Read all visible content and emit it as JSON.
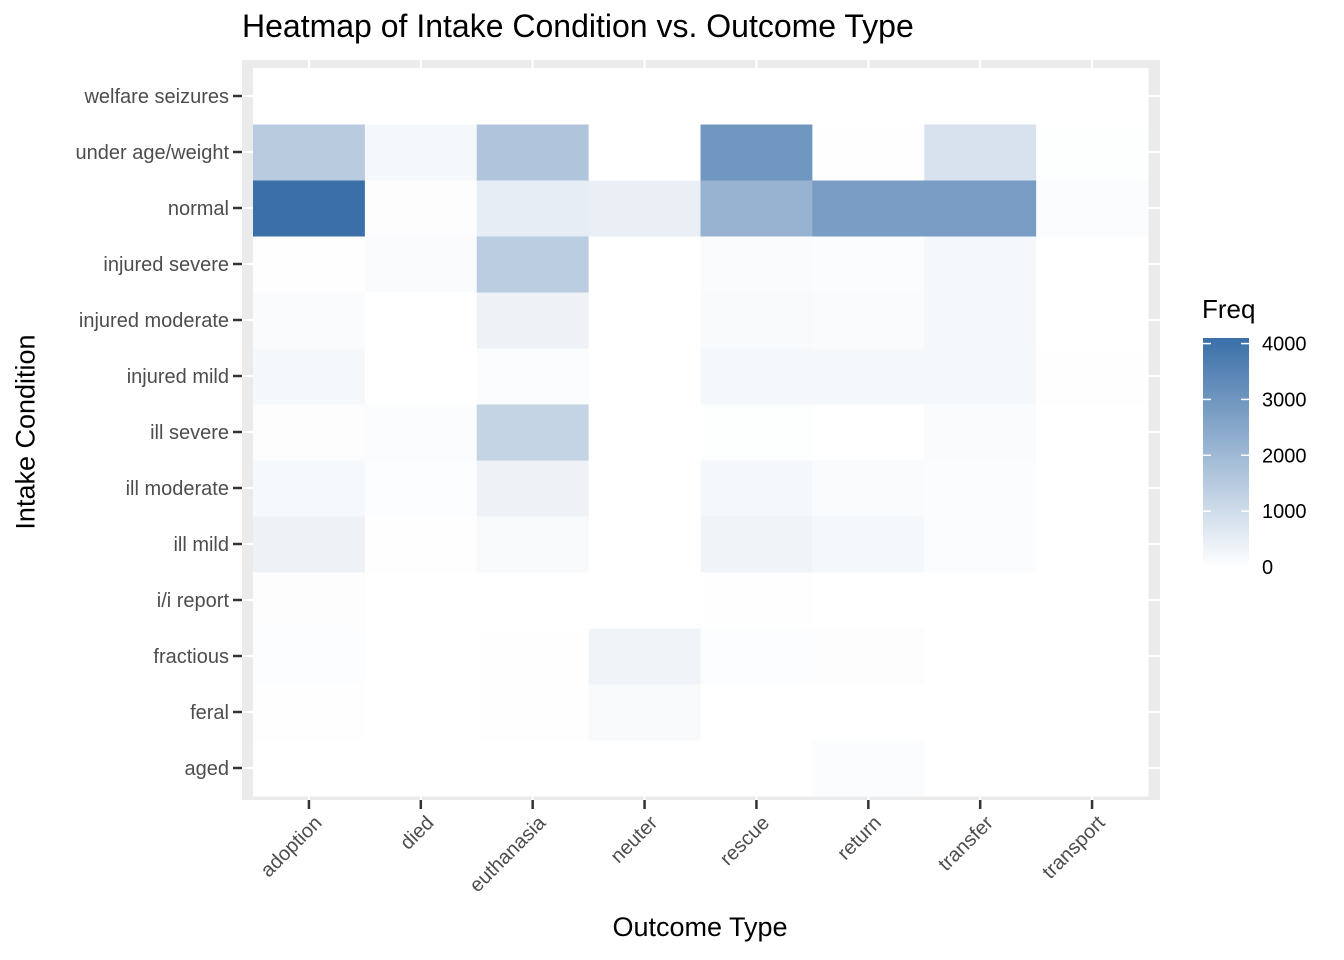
{
  "chart_data": {
    "type": "heatmap",
    "title": "Heatmap of Intake Condition vs. Outcome Type",
    "xlabel": "Outcome Type",
    "ylabel": "Intake Condition",
    "x": [
      "adoption",
      "died",
      "euthanasia",
      "neuter",
      "rescue",
      "return",
      "transfer",
      "transport"
    ],
    "y": [
      "aged",
      "feral",
      "fractious",
      "i/i report",
      "ill mild",
      "ill moderate",
      "ill severe",
      "injured mild",
      "injured moderate",
      "injured severe",
      "normal",
      "under age/weight",
      "welfare seizures"
    ],
    "values": [
      [
        10,
        0,
        0,
        0,
        0,
        80,
        0,
        0
      ],
      [
        15,
        0,
        20,
        150,
        0,
        0,
        0,
        0
      ],
      [
        60,
        0,
        30,
        300,
        60,
        50,
        10,
        0
      ],
      [
        50,
        0,
        0,
        0,
        20,
        0,
        0,
        0
      ],
      [
        350,
        20,
        150,
        0,
        300,
        200,
        80,
        0
      ],
      [
        180,
        60,
        350,
        0,
        200,
        120,
        80,
        0
      ],
      [
        50,
        80,
        1200,
        0,
        40,
        0,
        100,
        0
      ],
      [
        200,
        0,
        80,
        0,
        200,
        200,
        200,
        20
      ],
      [
        100,
        0,
        350,
        0,
        150,
        100,
        200,
        0
      ],
      [
        30,
        100,
        1400,
        0,
        100,
        80,
        200,
        0
      ],
      [
        4000,
        50,
        500,
        450,
        2100,
        2750,
        2750,
        80
      ],
      [
        1450,
        200,
        1600,
        0,
        2900,
        30,
        800,
        40
      ],
      [
        0,
        0,
        0,
        0,
        0,
        10,
        0,
        0
      ]
    ],
    "zlim": [
      0,
      4000
    ],
    "grid": true,
    "legend": {
      "title": "Freq",
      "position": "right",
      "ticks": [
        "4000",
        "3000",
        "2000",
        "1000",
        "0"
      ],
      "tick_values": [
        4000,
        3000,
        2000,
        1000,
        0
      ],
      "low_color": "#ffffff",
      "high_color": "#3a6fa8"
    },
    "colors": {
      "panel_background": "#ebebeb",
      "gridline": "#ffffff",
      "axis_text": "#4d4d4d"
    }
  }
}
